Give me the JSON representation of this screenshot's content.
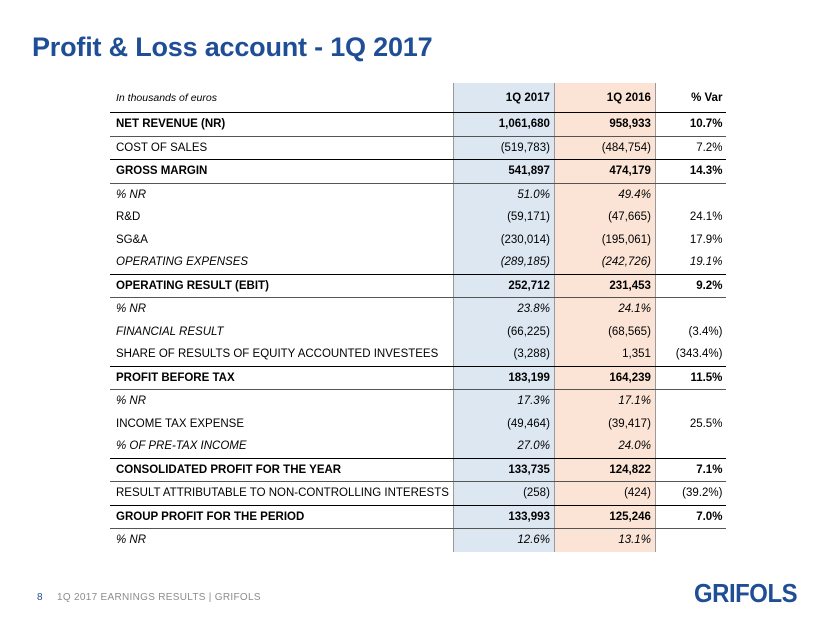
{
  "title": "Profit & Loss account - 1Q 2017",
  "table": {
    "unit_note": "In thousands of euros",
    "headers": [
      "1Q 2017",
      "1Q 2016",
      "% Var"
    ],
    "rows": [
      {
        "label": "NET REVENUE (NR)",
        "q2017": "1,061,680",
        "q2016": "958,933",
        "var": "10.7%"
      },
      {
        "label": "COST OF SALES",
        "q2017": "(519,783)",
        "q2016": "(484,754)",
        "var": "7.2%"
      },
      {
        "label": "GROSS MARGIN",
        "q2017": "541,897",
        "q2016": "474,179",
        "var": "14.3%"
      },
      {
        "label": "% NR",
        "q2017": "51.0%",
        "q2016": "49.4%",
        "var": ""
      },
      {
        "label": "R&D",
        "q2017": "(59,171)",
        "q2016": "(47,665)",
        "var": "24.1%"
      },
      {
        "label": "SG&A",
        "q2017": "(230,014)",
        "q2016": "(195,061)",
        "var": "17.9%"
      },
      {
        "label": "OPERATING EXPENSES",
        "q2017": "(289,185)",
        "q2016": "(242,726)",
        "var": "19.1%"
      },
      {
        "label": "OPERATING RESULT (EBIT)",
        "q2017": "252,712",
        "q2016": "231,453",
        "var": "9.2%"
      },
      {
        "label": "% NR",
        "q2017": "23.8%",
        "q2016": "24.1%",
        "var": ""
      },
      {
        "label": "FINANCIAL RESULT",
        "q2017": "(66,225)",
        "q2016": "(68,565)",
        "var": "(3.4%)"
      },
      {
        "label": "SHARE OF RESULTS OF EQUITY ACCOUNTED INVESTEES",
        "q2017": "(3,288)",
        "q2016": "1,351",
        "var": "(343.4%)"
      },
      {
        "label": "PROFIT BEFORE TAX",
        "q2017": "183,199",
        "q2016": "164,239",
        "var": "11.5%"
      },
      {
        "label": "% NR",
        "q2017": "17.3%",
        "q2016": "17.1%",
        "var": ""
      },
      {
        "label": "INCOME TAX EXPENSE",
        "q2017": "(49,464)",
        "q2016": "(39,417)",
        "var": "25.5%"
      },
      {
        "label": "% OF PRE-TAX INCOME",
        "q2017": "27.0%",
        "q2016": "24.0%",
        "var": ""
      },
      {
        "label": "CONSOLIDATED PROFIT FOR THE YEAR",
        "q2017": "133,735",
        "q2016": "124,822",
        "var": "7.1%"
      },
      {
        "label": "RESULT ATTRIBUTABLE TO NON-CONTROLLING INTERESTS",
        "q2017": "(258)",
        "q2016": "(424)",
        "var": "(39.2%)"
      },
      {
        "label": "GROUP PROFIT FOR THE PERIOD",
        "q2017": "133,993",
        "q2016": "125,246",
        "var": "7.0%"
      },
      {
        "label": "% NR",
        "q2017": "12.6%",
        "q2016": "13.1%",
        "var": ""
      }
    ]
  },
  "footer": {
    "page_number": "8",
    "text": "1Q 2017 EARNINGS RESULTS | GRIFOLS"
  },
  "logo_text": "GRIFOLS",
  "colors": {
    "brand_blue": "#1f4e96",
    "col_2017_bg": "#dde7f1",
    "col_2016_bg": "#fbe4d5"
  }
}
